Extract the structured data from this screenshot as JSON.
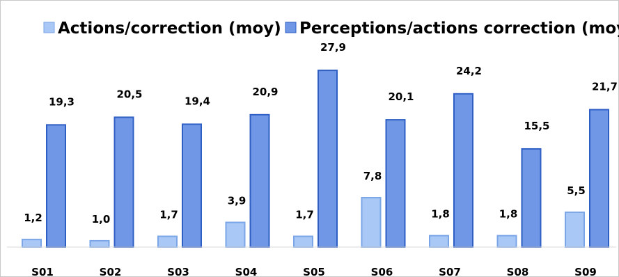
{
  "chart_data": {
    "type": "bar",
    "categories": [
      "S01",
      "S02",
      "S03",
      "S04",
      "S05",
      "S06",
      "S07",
      "S08",
      "S09"
    ],
    "series": [
      {
        "name": "Actions/correction (moy)",
        "values": [
          1.2,
          1.0,
          1.7,
          3.9,
          1.7,
          7.8,
          1.8,
          1.8,
          5.5
        ],
        "labels": [
          "1,2",
          "1,0",
          "1,7",
          "3,9",
          "1,7",
          "7,8",
          "1,8",
          "1,8",
          "5,5"
        ],
        "color": "#a9c8f5",
        "stroke": "#7aa6e8"
      },
      {
        "name": "Perceptions/actions correction (moy)",
        "values": [
          19.3,
          20.5,
          19.4,
          20.9,
          27.9,
          20.1,
          24.2,
          15.5,
          21.7
        ],
        "labels": [
          "19,3",
          "20,5",
          "19,4",
          "20,9",
          "27,9",
          "20,1",
          "24,2",
          "15,5",
          "21,7"
        ],
        "color": "#6f97e6",
        "stroke": "#2f5fc4"
      }
    ],
    "title": "",
    "xlabel": "",
    "ylabel": "",
    "ylim": [
      0,
      30
    ],
    "grid": false,
    "legend_position": "top"
  }
}
